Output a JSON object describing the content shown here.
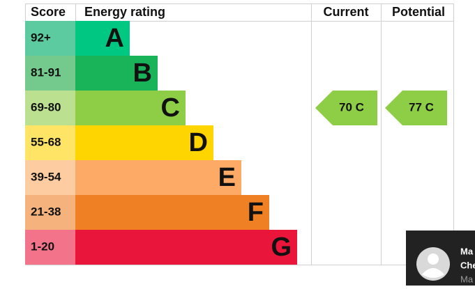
{
  "header": {
    "score": "Score",
    "energy_rating": "Energy rating",
    "current": "Current",
    "potential": "Potential"
  },
  "bands": [
    {
      "score": "92+",
      "letter": "A",
      "color": "#00c781",
      "score_color": "#5ccba0"
    },
    {
      "score": "81-91",
      "letter": "B",
      "color": "#19b459",
      "score_color": "#74c98d"
    },
    {
      "score": "69-80",
      "letter": "C",
      "color": "#8dce46",
      "score_color": "#bbe190"
    },
    {
      "score": "55-68",
      "letter": "D",
      "color": "#ffd500",
      "score_color": "#ffe466"
    },
    {
      "score": "39-54",
      "letter": "E",
      "color": "#fcaa65",
      "score_color": "#fdcca0"
    },
    {
      "score": "21-38",
      "letter": "F",
      "color": "#ef8023",
      "score_color": "#f5b27c"
    },
    {
      "score": "1-20",
      "letter": "G",
      "color": "#e9153b",
      "score_color": "#f2738a"
    }
  ],
  "current": {
    "label": "70 C",
    "color": "#8dce46"
  },
  "potential": {
    "label": "77 C",
    "color": "#8dce46"
  },
  "popup": {
    "line1": "Ma",
    "line2": "Che",
    "line3": "Ma"
  }
}
